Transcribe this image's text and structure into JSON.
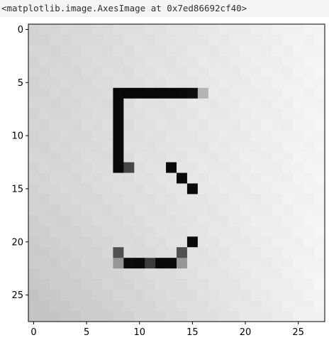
{
  "output": {
    "repr_text": "<matplotlib.image.AxesImage at 0x7ed86692cf40>"
  },
  "chart_data": {
    "type": "heatmap",
    "title": "",
    "xlabel": "",
    "ylabel": "",
    "colormap": "gray",
    "grid": false,
    "image_shape": [
      28,
      28
    ],
    "xlim": [
      -0.5,
      27.5
    ],
    "ylim": [
      27.5,
      -0.5
    ],
    "x_ticks": [
      0,
      5,
      10,
      15,
      20,
      25
    ],
    "y_ticks": [
      0,
      5,
      10,
      15,
      20,
      25
    ],
    "x_tick_labels": [
      "0",
      "5",
      "10",
      "15",
      "20",
      "25"
    ],
    "y_tick_labels": [
      "0",
      "5",
      "10",
      "15",
      "20",
      "25"
    ],
    "background_gradient": {
      "description_values": "grayscale intensity 0-255, lighter toward center-right, darker toward left/bottom-left",
      "center_value": 244,
      "left_edge_value": 208,
      "bottom_left_value": 196
    },
    "stroke_pixels": [
      {
        "row": 6,
        "col": 8,
        "v": 10
      },
      {
        "row": 6,
        "col": 9,
        "v": 8
      },
      {
        "row": 6,
        "col": 10,
        "v": 8
      },
      {
        "row": 6,
        "col": 11,
        "v": 8
      },
      {
        "row": 6,
        "col": 12,
        "v": 8
      },
      {
        "row": 6,
        "col": 13,
        "v": 8
      },
      {
        "row": 6,
        "col": 14,
        "v": 10
      },
      {
        "row": 6,
        "col": 15,
        "v": 14
      },
      {
        "row": 6,
        "col": 16,
        "v": 180
      },
      {
        "row": 7,
        "col": 8,
        "v": 10
      },
      {
        "row": 8,
        "col": 8,
        "v": 10
      },
      {
        "row": 9,
        "col": 8,
        "v": 10
      },
      {
        "row": 10,
        "col": 8,
        "v": 10
      },
      {
        "row": 11,
        "col": 8,
        "v": 10
      },
      {
        "row": 12,
        "col": 8,
        "v": 10
      },
      {
        "row": 13,
        "col": 8,
        "v": 8
      },
      {
        "row": 13,
        "col": 9,
        "v": 70
      },
      {
        "row": 13,
        "col": 13,
        "v": 10
      },
      {
        "row": 14,
        "col": 14,
        "v": 10
      },
      {
        "row": 15,
        "col": 15,
        "v": 10
      },
      {
        "row": 20,
        "col": 15,
        "v": 10
      },
      {
        "row": 21,
        "col": 8,
        "v": 80
      },
      {
        "row": 21,
        "col": 14,
        "v": 80
      },
      {
        "row": 22,
        "col": 8,
        "v": 150
      },
      {
        "row": 22,
        "col": 9,
        "v": 12
      },
      {
        "row": 22,
        "col": 10,
        "v": 10
      },
      {
        "row": 22,
        "col": 11,
        "v": 60
      },
      {
        "row": 22,
        "col": 12,
        "v": 10
      },
      {
        "row": 22,
        "col": 13,
        "v": 10
      },
      {
        "row": 22,
        "col": 14,
        "v": 150
      }
    ]
  }
}
